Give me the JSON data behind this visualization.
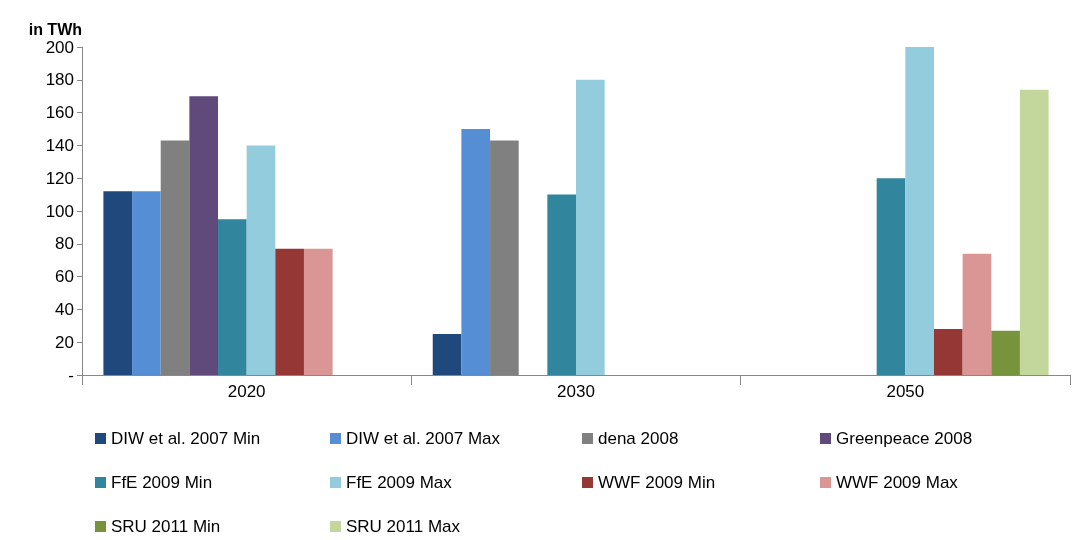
{
  "chart_data": {
    "type": "bar",
    "ylabel": "in TWh",
    "categories": [
      "2020",
      "2030",
      "2050"
    ],
    "series": [
      {
        "name": "DIW et al. 2007 Min",
        "color": "#1f497d",
        "values": [
          112,
          25,
          null
        ]
      },
      {
        "name": "DIW et al. 2007 Max",
        "color": "#558ed5",
        "values": [
          112,
          150,
          null
        ]
      },
      {
        "name": "dena 2008",
        "color": "#808080",
        "values": [
          143,
          143,
          null
        ]
      },
      {
        "name": "Greenpeace 2008",
        "color": "#604a7b",
        "values": [
          170,
          null,
          null
        ]
      },
      {
        "name": "FfE 2009 Min",
        "color": "#31859c",
        "values": [
          95,
          110,
          120
        ]
      },
      {
        "name": "FfE 2009 Max",
        "color": "#93cddd",
        "values": [
          140,
          180,
          200
        ]
      },
      {
        "name": "WWF 2009 Min",
        "color": "#953735",
        "values": [
          77,
          null,
          28
        ]
      },
      {
        "name": "WWF 2009 Max",
        "color": "#d99694",
        "values": [
          77,
          null,
          74
        ]
      },
      {
        "name": "SRU 2011 Min",
        "color": "#77933c",
        "values": [
          null,
          null,
          27
        ]
      },
      {
        "name": "SRU 2011 Max",
        "color": "#c3d69b",
        "values": [
          null,
          null,
          174
        ]
      }
    ],
    "ylim": [
      0,
      200
    ],
    "yticks": [
      {
        "value": 0,
        "label": "-"
      },
      20,
      40,
      60,
      80,
      100,
      120,
      140,
      160,
      180,
      200
    ],
    "grid": false,
    "legend": "bottom"
  }
}
